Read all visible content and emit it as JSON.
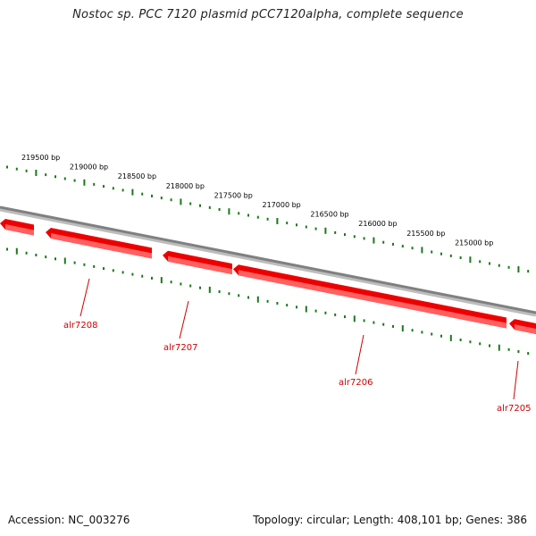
{
  "title": "Nostoc sp. PCC 7120 plasmid pCC7120alpha, complete sequence",
  "footer": {
    "accession": "Accession: NC_003276",
    "summary": "Topology: circular; Length: 408,101 bp; Genes: 386"
  },
  "colors": {
    "backbone": "#808080",
    "gene_dark": "#ee0000",
    "gene_light": "#ff6060",
    "tick": "#1a7a1a",
    "gene_label": "#cc0000",
    "text": "#000000"
  },
  "position_labels": [
    "219500 bp",
    "219000 bp",
    "218500 bp",
    "218000 bp",
    "217500 bp",
    "217000 bp",
    "216500 bp",
    "216000 bp",
    "215500 bp",
    "215000 bp"
  ],
  "genes": [
    {
      "name": "alr7208"
    },
    {
      "name": "alr7207"
    },
    {
      "name": "alr7206"
    },
    {
      "name": "alr7205"
    }
  ]
}
